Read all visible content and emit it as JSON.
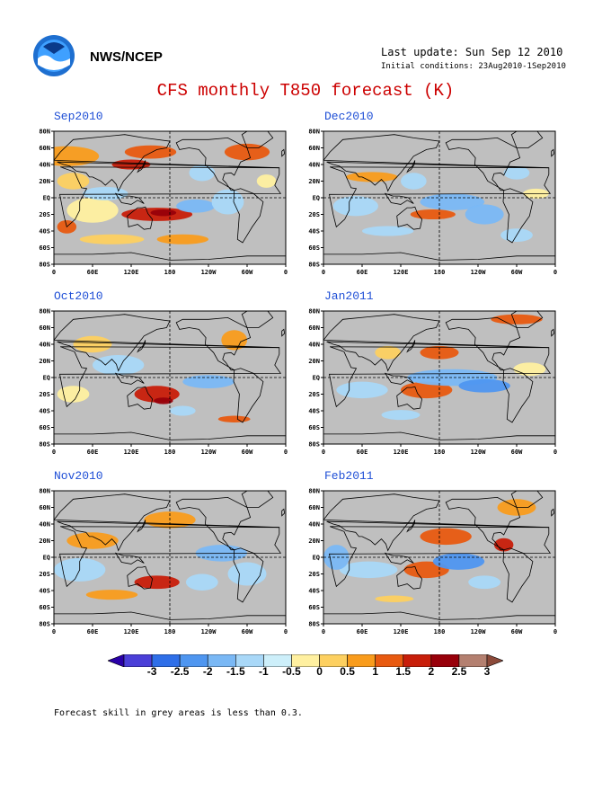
{
  "header": {
    "org": "NWS/NCEP",
    "last_update": "Last update: Sun Sep 12 2010",
    "initial_conditions": "Initial conditions: 23Aug2010-1Sep2010",
    "title": "CFS monthly T850 forecast (K)"
  },
  "panels": [
    {
      "title": "Sep2010"
    },
    {
      "title": "Dec2010"
    },
    {
      "title": "Oct2010"
    },
    {
      "title": "Jan2011"
    },
    {
      "title": "Nov2010"
    },
    {
      "title": "Feb2011"
    }
  ],
  "axes": {
    "lat_labels": [
      "80N",
      "60N",
      "40N",
      "20N",
      "EQ",
      "20S",
      "40S",
      "60S",
      "80S"
    ],
    "lon_labels": [
      "0",
      "60E",
      "120E",
      "180",
      "120W",
      "60W",
      "0"
    ]
  },
  "colorbar": {
    "labels": [
      "-3",
      "-2.5",
      "-2",
      "-1.5",
      "-1",
      "-0.5",
      "0",
      "0.5",
      "1",
      "1.5",
      "2",
      "2.5",
      "3"
    ],
    "colors": [
      "#2a00a8",
      "#4b3fd8",
      "#2f6fe8",
      "#4f96f0",
      "#7ab8f5",
      "#a9d8f8",
      "#cdeffa",
      "#fff0a0",
      "#fdd060",
      "#f99c1c",
      "#e85a10",
      "#c81e0a",
      "#98000a",
      "#b48070",
      "#8c4a3a"
    ]
  },
  "grey_color": "#bfbfbf",
  "footer": {
    "note": "Forecast skill in grey areas is less than 0.3."
  }
}
